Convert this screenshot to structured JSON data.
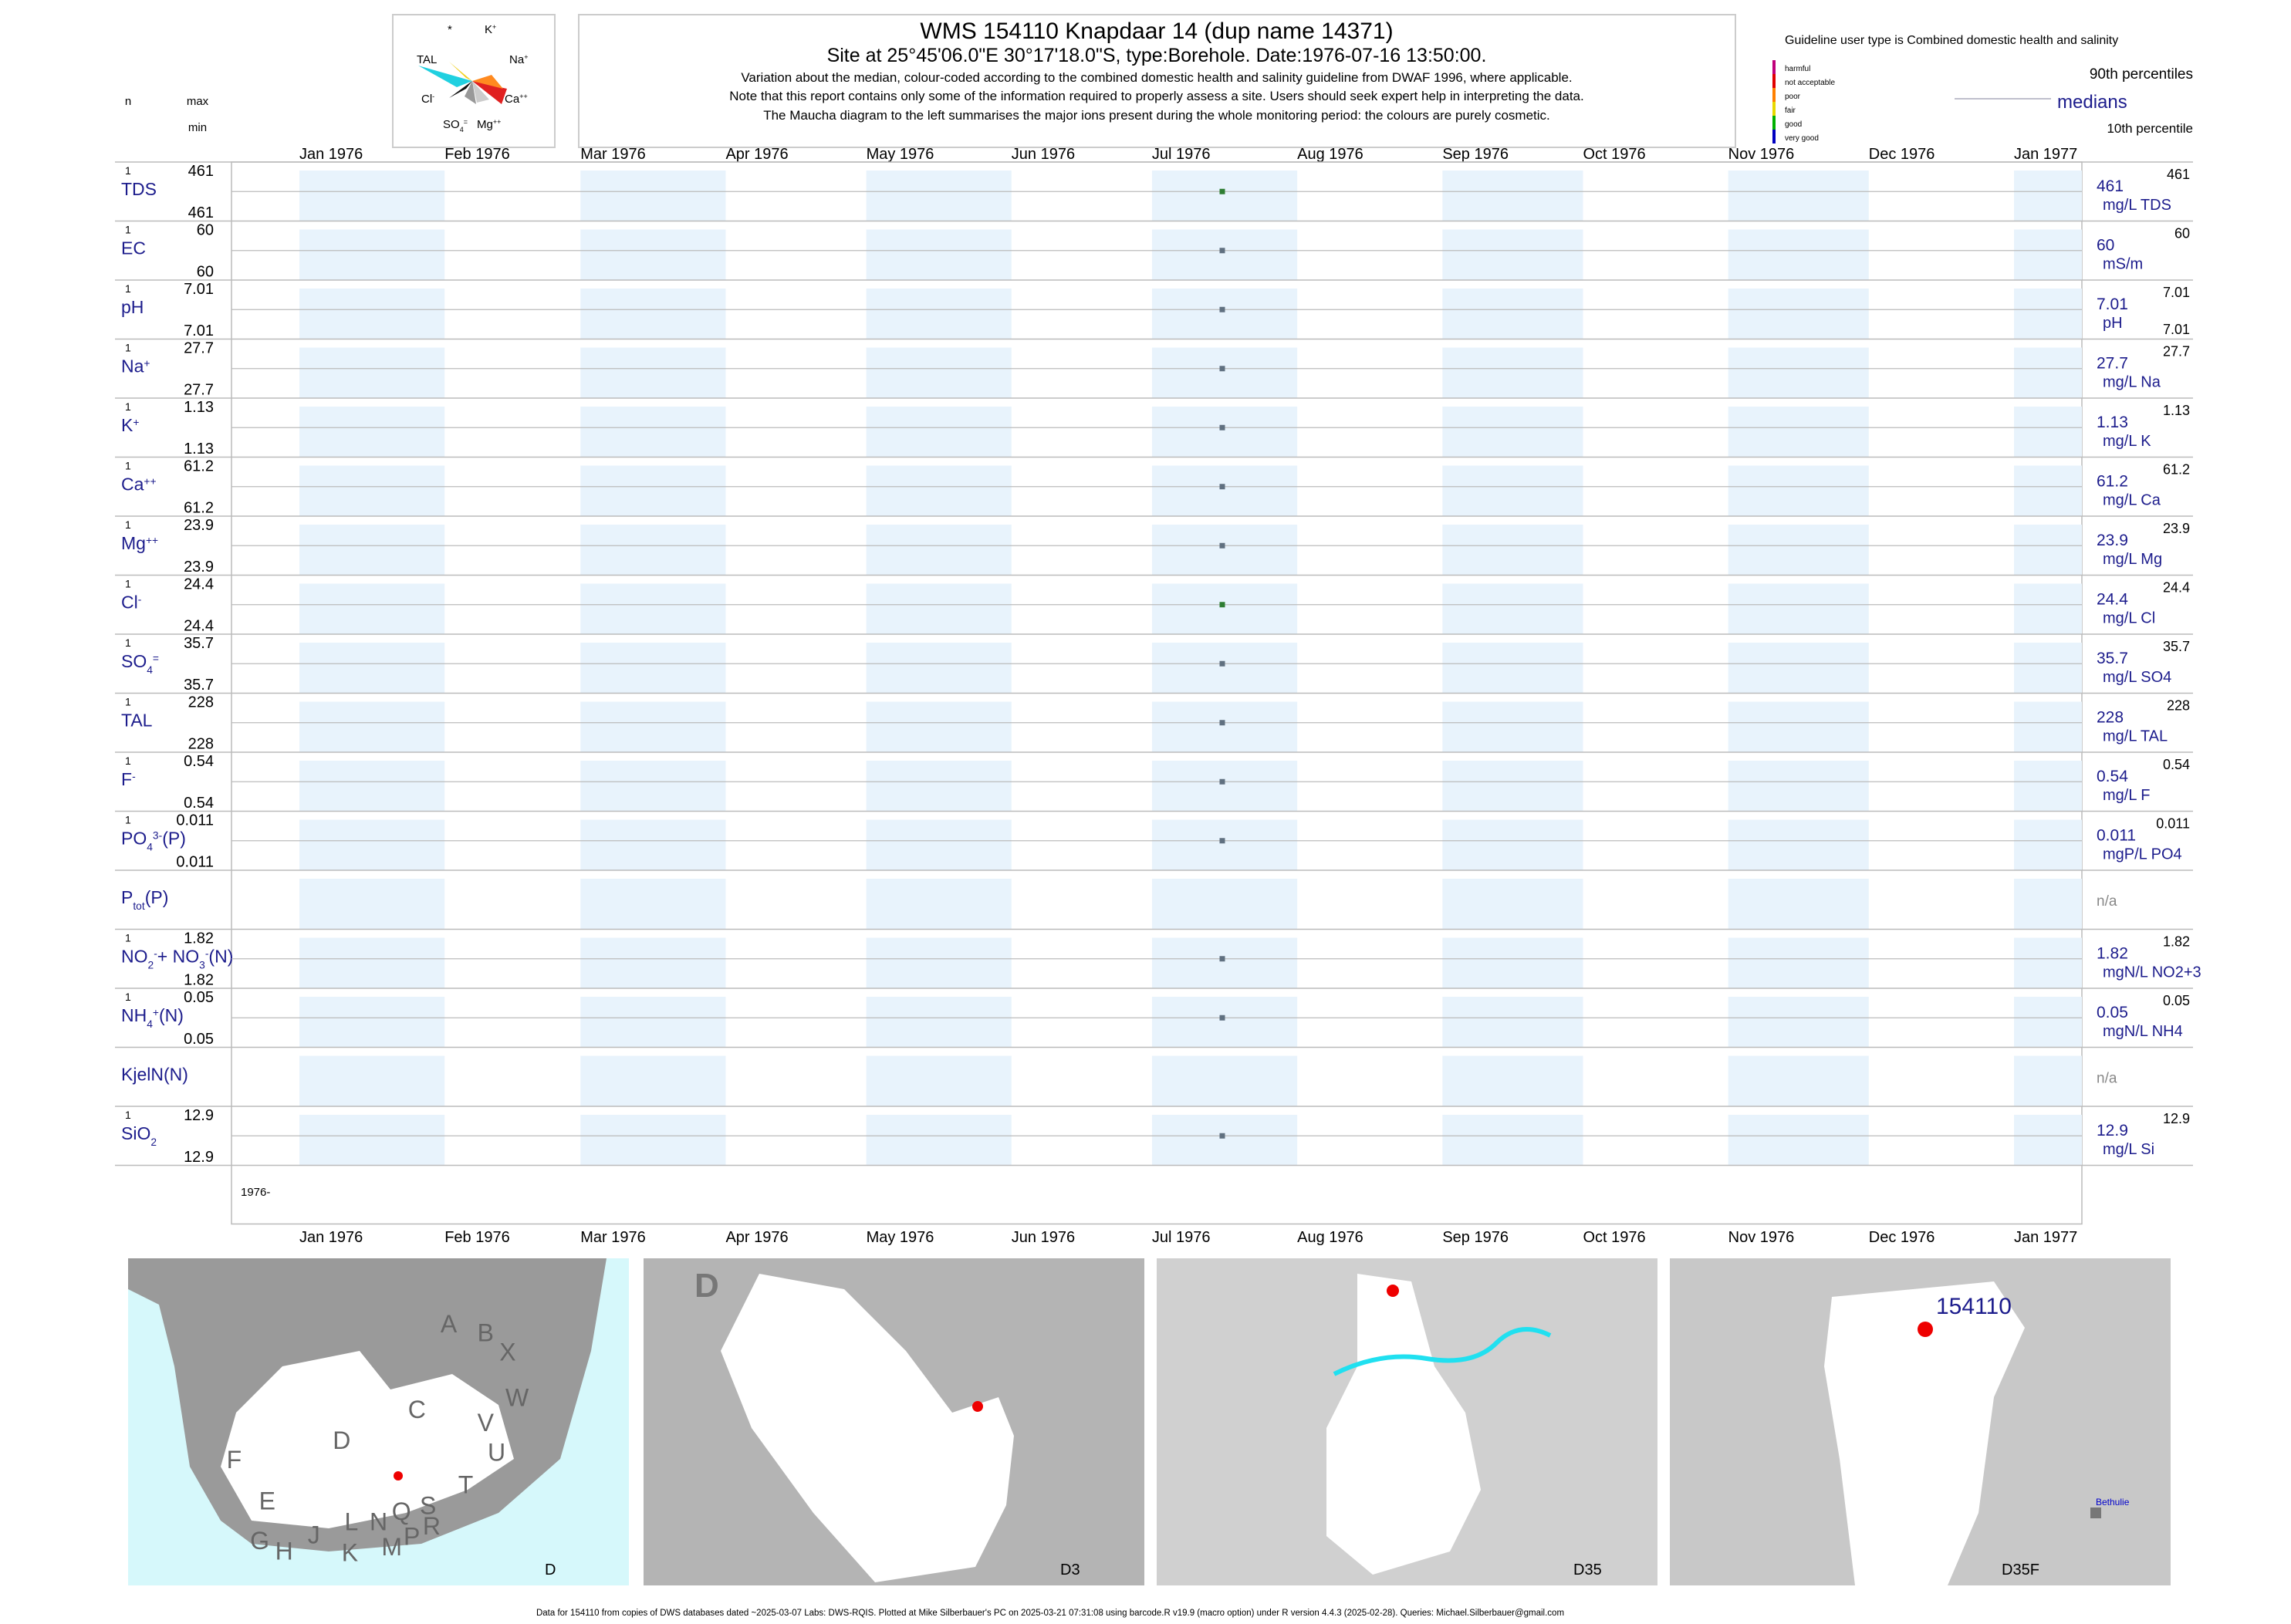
{
  "header": {
    "title": "WMS 154110  Knapdaar 14 (dup name 14371)",
    "subtitle": "Site at 25°45'06.0\"E 30°17'18.0\"S, type:Borehole. Date:1976-07-16 13:50:00.",
    "notes": [
      "Variation about the median,  colour-coded according to the combined domestic health and salinity guideline from DWAF 1996, where applicable.",
      "Note that this report contains only some of the information required to properly assess a site. Users should seek expert help in interpreting the data.",
      "The Maucha diagram to the left summarises the major ions present during the whole monitoring period: the colours are purely cosmetic."
    ]
  },
  "maucha": {
    "labels": [
      [
        {
          "text": "*"
        }
      ],
      [
        {
          "text": "K"
        },
        {
          "text": "+",
          "pos": "sup"
        }
      ],
      [
        {
          "text": "TAL"
        }
      ],
      [
        {
          "text": "Na"
        },
        {
          "text": "+",
          "pos": "sup"
        }
      ],
      [
        {
          "text": "Cl"
        },
        {
          "text": "-",
          "pos": "sup"
        }
      ],
      [
        {
          "text": "Ca"
        },
        {
          "text": "++",
          "pos": "sup"
        }
      ],
      [
        {
          "text": "SO"
        },
        {
          "text": "4",
          "pos": "sub"
        },
        {
          "text": "=",
          "pos": "sup"
        }
      ],
      [
        {
          "text": "Mg"
        },
        {
          "text": "++",
          "pos": "sup"
        }
      ]
    ]
  },
  "legend": {
    "title": "Guideline user type is Combined domestic health and salinity",
    "classes": [
      "harmful",
      "not acceptable",
      "poor",
      "fair",
      "good",
      "very good"
    ],
    "class_colors": [
      "#c0007a",
      "#e00000",
      "#ff8000",
      "#e8d800",
      "#00b000",
      "#0000c0"
    ],
    "p90": "90th percentiles",
    "medians": "medians",
    "p10": "10th percentile"
  },
  "column_heads": {
    "n": "n",
    "max": "max",
    "min": "min"
  },
  "months": [
    "Jan 1976",
    "Feb 1976",
    "Mar 1976",
    "Apr 1976",
    "May 1976",
    "Jun 1976",
    "Jul 1976",
    "Aug 1976",
    "Sep 1976",
    "Oct 1976",
    "Nov 1976",
    "Dec 1976",
    "Jan 1977"
  ],
  "x_prefix": "1976-",
  "rows": [
    {
      "label": [
        {
          "text": "TDS"
        }
      ],
      "n": 1,
      "max": 461,
      "min": 461,
      "median": 461,
      "p90": 461,
      "unit": "mg/L TDS",
      "color": "#2e7d32"
    },
    {
      "label": [
        {
          "text": "EC"
        }
      ],
      "n": 1,
      "max": 60,
      "min": 60,
      "median": 60,
      "p90": 60,
      "unit": "mS/m",
      "color": "#607080"
    },
    {
      "label": [
        {
          "text": "pH"
        }
      ],
      "n": 1,
      "max": 7.01,
      "min": 7.01,
      "median": 7.01,
      "p90": 7.01,
      "p10": 7.01,
      "unit": "pH",
      "color": "#607080"
    },
    {
      "label": [
        {
          "text": "Na"
        },
        {
          "text": "+",
          "pos": "sup"
        }
      ],
      "n": 1,
      "max": 27.7,
      "min": 27.7,
      "median": 27.7,
      "p90": 27.7,
      "unit": "mg/L Na",
      "color": "#607080"
    },
    {
      "label": [
        {
          "text": "K"
        },
        {
          "text": "+",
          "pos": "sup"
        }
      ],
      "n": 1,
      "max": 1.13,
      "min": 1.13,
      "median": 1.13,
      "p90": 1.13,
      "unit": "mg/L K",
      "color": "#607080"
    },
    {
      "label": [
        {
          "text": "Ca"
        },
        {
          "text": "++",
          "pos": "sup"
        }
      ],
      "n": 1,
      "max": 61.2,
      "min": 61.2,
      "median": 61.2,
      "p90": 61.2,
      "unit": "mg/L Ca",
      "color": "#607080"
    },
    {
      "label": [
        {
          "text": "Mg"
        },
        {
          "text": "++",
          "pos": "sup"
        }
      ],
      "n": 1,
      "max": 23.9,
      "min": 23.9,
      "median": 23.9,
      "p90": 23.9,
      "unit": "mg/L Mg",
      "color": "#607080"
    },
    {
      "label": [
        {
          "text": "Cl"
        },
        {
          "text": "-",
          "pos": "sup"
        }
      ],
      "n": 1,
      "max": 24.4,
      "min": 24.4,
      "median": 24.4,
      "p90": 24.4,
      "unit": "mg/L Cl",
      "color": "#2e7d32"
    },
    {
      "label": [
        {
          "text": "SO"
        },
        {
          "text": "4",
          "pos": "sub"
        },
        {
          "text": "=",
          "pos": "sup"
        }
      ],
      "n": 1,
      "max": 35.7,
      "min": 35.7,
      "median": 35.7,
      "p90": 35.7,
      "unit": "mg/L SO4",
      "color": "#607080"
    },
    {
      "label": [
        {
          "text": "TAL"
        }
      ],
      "n": 1,
      "max": 228,
      "min": 228,
      "median": 228,
      "p90": 228,
      "unit": "mg/L TAL",
      "color": "#607080"
    },
    {
      "label": [
        {
          "text": "F"
        },
        {
          "text": "-",
          "pos": "sup"
        }
      ],
      "n": 1,
      "max": 0.54,
      "min": 0.54,
      "median": 0.54,
      "p90": 0.54,
      "unit": "mg/L F",
      "color": "#607080"
    },
    {
      "label": [
        {
          "text": "PO"
        },
        {
          "text": "4",
          "pos": "sub"
        },
        {
          "text": "3-",
          "pos": "sup"
        },
        {
          "text": "(P)"
        }
      ],
      "n": 1,
      "max": 0.011,
      "min": 0.011,
      "median": 0.011,
      "p90": 0.011,
      "unit": "mgP/L PO4",
      "color": "#607080"
    },
    {
      "label": [
        {
          "text": "P"
        },
        {
          "text": "tot",
          "pos": "sub"
        },
        {
          "text": "(P)"
        }
      ],
      "na": "n/a"
    },
    {
      "label": [
        {
          "text": "NO"
        },
        {
          "text": "2",
          "pos": "sub"
        },
        {
          "text": "-",
          "pos": "sup"
        },
        {
          "text": "+ NO"
        },
        {
          "text": "3",
          "pos": "sub"
        },
        {
          "text": "-",
          "pos": "sup"
        },
        {
          "text": "(N)"
        }
      ],
      "n": 1,
      "max": 1.82,
      "min": 1.82,
      "median": 1.82,
      "p90": 1.82,
      "unit": "mgN/L NO2+3",
      "color": "#607080"
    },
    {
      "label": [
        {
          "text": "NH"
        },
        {
          "text": "4",
          "pos": "sub"
        },
        {
          "text": "+",
          "pos": "sup"
        },
        {
          "text": "(N)"
        }
      ],
      "n": 1,
      "max": 0.05,
      "min": 0.05,
      "median": 0.05,
      "p90": 0.05,
      "unit": "mgN/L NH4",
      "color": "#607080"
    },
    {
      "label": [
        {
          "text": "KjelN(N)"
        }
      ],
      "na": "n/a"
    },
    {
      "label": [
        {
          "text": "SiO"
        },
        {
          "text": "2",
          "pos": "sub"
        }
      ],
      "n": 1,
      "max": 12.9,
      "min": 12.9,
      "median": 12.9,
      "p90": 12.9,
      "unit": "mg/L Si",
      "color": "#607080"
    }
  ],
  "maps": [
    {
      "label": "D",
      "regions": [
        "A",
        "B",
        "X",
        "W",
        "C",
        "V",
        "U",
        "D",
        "T",
        "F",
        "E",
        "S",
        "R",
        "Q",
        "M",
        "P",
        "N",
        "L",
        "K",
        "J",
        "H",
        "G"
      ]
    },
    {
      "label": "D3",
      "corner": "D"
    },
    {
      "label": "D35"
    },
    {
      "label": "D35F",
      "site": "154110",
      "town": "Bethulie"
    }
  ],
  "footer": "Data for 154110 from copies of DWS databases dated ~2025-03-07 Labs: DWS-RQIS. Plotted at Mike Silberbauer's PC on 2025-03-21 07:31:08 using barcode.R v19.9 (macro option) under R version 4.4.3 (2025-02-28). Queries: Michael.Silberbauer@gmail.com"
}
